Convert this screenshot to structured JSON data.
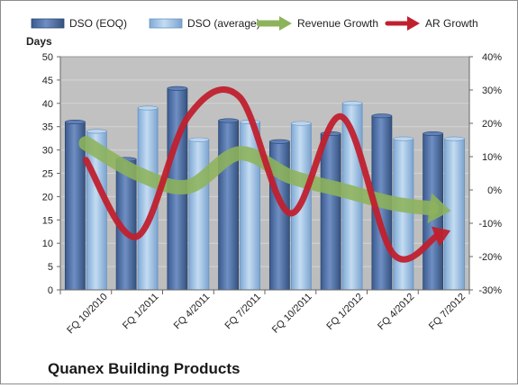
{
  "chart_data": {
    "type": "bar",
    "title": "Quanex Building Products",
    "categories": [
      "FQ 10/2010",
      "FQ 1/2011",
      "FQ 4/2011",
      "FQ 7/2011",
      "FQ 10/2011",
      "FQ 1/2012",
      "FQ 4/2012",
      "FQ 7/2012"
    ],
    "series": [
      {
        "name": "DSO (EOQ)",
        "type": "bar",
        "axis": "left",
        "color": "#4f6fa8",
        "values": [
          36.0,
          28.0,
          43.2,
          36.3,
          31.8,
          33.5,
          37.3,
          33.5
        ]
      },
      {
        "name": "DSO (average)",
        "type": "bar",
        "axis": "left",
        "color": "#9dc3e6",
        "values": [
          34.0,
          39.0,
          32.2,
          36.0,
          35.7,
          40.0,
          32.4,
          32.4
        ]
      },
      {
        "name": "Revenue Growth",
        "type": "line",
        "axis": "right",
        "color": "#8db35a",
        "values": [
          0.14,
          0.05,
          0.01,
          0.11,
          0.04,
          0.0,
          -0.04,
          -0.06
        ]
      },
      {
        "name": "AR Growth",
        "type": "line",
        "axis": "right",
        "color": "#c0202e",
        "values": [
          0.09,
          -0.14,
          0.22,
          0.28,
          -0.07,
          0.22,
          -0.19,
          -0.13
        ]
      }
    ],
    "ylabel": "Days",
    "ylim": [
      0,
      50
    ],
    "yticks": [
      "0",
      "5",
      "10",
      "15",
      "20",
      "25",
      "30",
      "35",
      "40",
      "45",
      "50"
    ],
    "y2lim": [
      -0.3,
      0.4
    ],
    "y2ticks": [
      "-30%",
      "-20%",
      "-10%",
      "0%",
      "10%",
      "20%",
      "30%",
      "40%"
    ],
    "legend_position": "top",
    "plot_background": "#c0c0c0",
    "grid": "horizontal"
  }
}
